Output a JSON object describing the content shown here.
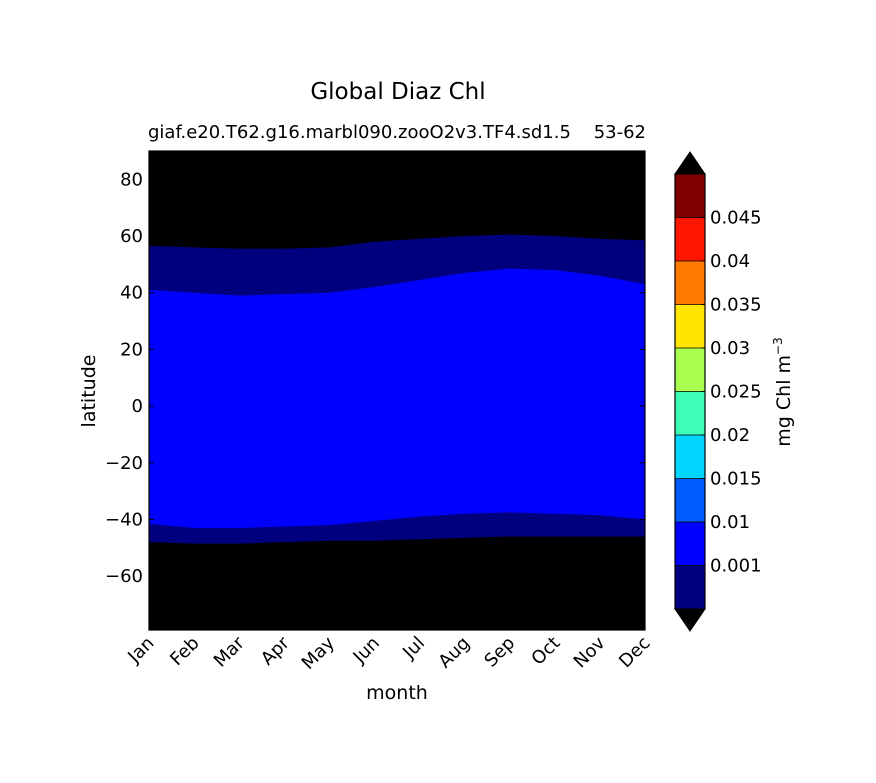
{
  "chart_data": {
    "type": "heatmap",
    "title": "Global Diaz Chl",
    "subtitle_left": "giaf.e20.T62.g16.marbl090.zooO2v3.TF4.sd1.5",
    "subtitle_right": "53-62",
    "xlabel": "month",
    "ylabel": "latitude",
    "x_categories": [
      "Jan",
      "Feb",
      "Mar",
      "Apr",
      "May",
      "Jun",
      "Jul",
      "Aug",
      "Sep",
      "Oct",
      "Nov",
      "Dec"
    ],
    "y_ticks": [
      80,
      60,
      40,
      20,
      0,
      -20,
      -40,
      -60
    ],
    "y_tick_labels": [
      "80",
      "60",
      "40",
      "20",
      "0",
      "−20",
      "−40",
      "−60"
    ],
    "ylim": [
      -79,
      90
    ],
    "grid": false,
    "colorbar": {
      "label": "mg Chl m",
      "label_superscript": "−3",
      "levels": [
        0,
        0.001,
        0.01,
        0.015,
        0.02,
        0.025,
        0.03,
        0.035,
        0.04,
        0.045,
        0.05
      ],
      "tick_labels": [
        "0.001",
        "0.01",
        "0.015",
        "0.02",
        "0.025",
        "0.03",
        "0.035",
        "0.04",
        "0.045"
      ],
      "colors": [
        "#00007f",
        "#0000ff",
        "#005cff",
        "#00d5ff",
        "#3fffb8",
        "#a8ff4f",
        "#ffe500",
        "#ff7a00",
        "#ff1600",
        "#7f0000"
      ],
      "below_color": "#000000",
      "above_color": "#000000"
    },
    "background_color": "#000000",
    "bands": [
      {
        "name": "0.001",
        "color": "#00007f",
        "north": [
          56.5,
          56,
          55.5,
          55.5,
          56,
          58,
          59,
          60,
          60.5,
          60,
          59,
          58.5
        ],
        "south": [
          -48,
          -48.5,
          -48.5,
          -48,
          -47.5,
          -47.5,
          -47,
          -46.5,
          -46,
          -46,
          -46,
          -46
        ]
      },
      {
        "name": "0.001-0.01",
        "color": "#0000ff",
        "north": [
          41,
          40,
          39,
          39.5,
          40,
          42,
          44.5,
          47,
          48.5,
          48,
          46,
          43
        ],
        "south": [
          -41.5,
          -43,
          -43,
          -42.5,
          -42,
          -40.5,
          -39,
          -38,
          -37.5,
          -38,
          -38.5,
          -40
        ]
      }
    ]
  }
}
